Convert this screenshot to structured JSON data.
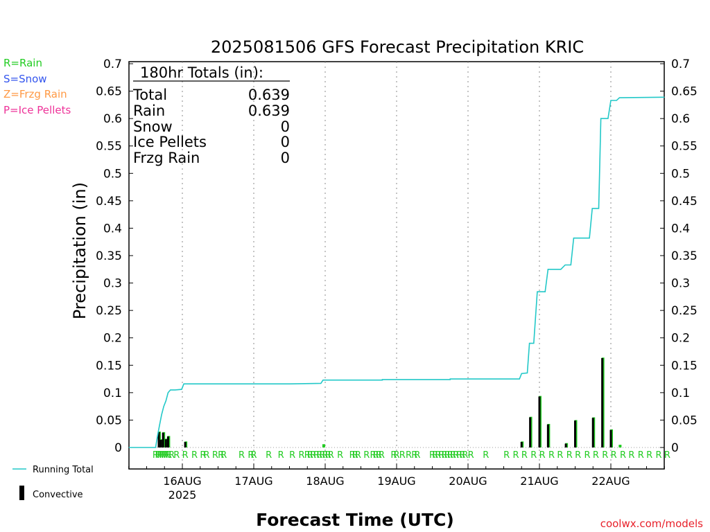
{
  "chart_data": {
    "type": "bar",
    "title": "2025081506 GFS Forecast Precipitation KRIC",
    "xlabel": "Forecast Time (UTC)",
    "ylabel": "Precipitation (in)",
    "ylim": [
      0,
      0.7
    ],
    "yticks": [
      "0",
      "0.05",
      "0.1",
      "0.15",
      "0.2",
      "0.25",
      "0.3",
      "0.35",
      "0.4",
      "0.45",
      "0.5",
      "0.55",
      "0.6",
      "0.65",
      "0.7"
    ],
    "xticks": [
      {
        "day": 16,
        "label": "16AUG",
        "sublabel": "2025"
      },
      {
        "day": 17,
        "label": "17AUG",
        "sublabel": ""
      },
      {
        "day": 18,
        "label": "18AUG",
        "sublabel": ""
      },
      {
        "day": 19,
        "label": "19AUG",
        "sublabel": ""
      },
      {
        "day": 20,
        "label": "20AUG",
        "sublabel": ""
      },
      {
        "day": 21,
        "label": "21AUG",
        "sublabel": ""
      },
      {
        "day": 22,
        "label": "22AUG",
        "sublabel": ""
      }
    ],
    "xrange_days": [
      15.25,
      22.75
    ],
    "legend": {
      "running_total": "Running Total",
      "convective": "Convective",
      "precip_types": [
        {
          "text": "R=Rain",
          "color": "#22cc22"
        },
        {
          "text": "S=Snow",
          "color": "#3355ee"
        },
        {
          "text": "Z=Frzg Rain",
          "color": "#ff9944"
        },
        {
          "text": "P=Ice Pellets",
          "color": "#ee3399"
        }
      ]
    },
    "totals": {
      "header": "180hr Totals (in):",
      "rows": [
        {
          "label": "Total",
          "value": "0.639"
        },
        {
          "label": "Rain",
          "value": "0.639"
        },
        {
          "label": "Snow",
          "value": "0"
        },
        {
          "label": "Ice Pellets",
          "value": "0"
        },
        {
          "label": "Frzg Rain",
          "value": "0"
        }
      ]
    },
    "series": [
      {
        "name": "Running Total",
        "color": "#22c8c8",
        "points": [
          [
            15.25,
            0
          ],
          [
            15.625,
            0
          ],
          [
            15.65,
            0.02
          ],
          [
            15.68,
            0.04
          ],
          [
            15.71,
            0.06
          ],
          [
            15.74,
            0.075
          ],
          [
            15.77,
            0.085
          ],
          [
            15.8,
            0.1
          ],
          [
            15.833,
            0.105
          ],
          [
            15.9,
            0.105
          ],
          [
            15.99,
            0.106
          ],
          [
            16.02,
            0.116
          ],
          [
            17.5,
            0.116
          ],
          [
            17.94,
            0.117
          ],
          [
            17.97,
            0.123
          ],
          [
            18.8,
            0.123
          ],
          [
            18.8,
            0.124
          ],
          [
            19.75,
            0.124
          ],
          [
            19.75,
            0.125
          ],
          [
            20.72,
            0.125
          ],
          [
            20.75,
            0.135
          ],
          [
            20.83,
            0.136
          ],
          [
            20.86,
            0.19
          ],
          [
            20.92,
            0.19
          ],
          [
            20.97,
            0.284
          ],
          [
            21.08,
            0.284
          ],
          [
            21.12,
            0.325
          ],
          [
            21.3,
            0.325
          ],
          [
            21.36,
            0.333
          ],
          [
            21.44,
            0.333
          ],
          [
            21.48,
            0.382
          ],
          [
            21.7,
            0.382
          ],
          [
            21.74,
            0.436
          ],
          [
            21.83,
            0.436
          ],
          [
            21.86,
            0.6
          ],
          [
            21.96,
            0.6
          ],
          [
            22.0,
            0.633
          ],
          [
            22.08,
            0.633
          ],
          [
            22.12,
            0.638
          ],
          [
            22.75,
            0.639
          ]
        ]
      },
      {
        "name": "Convective",
        "color": "#000000",
        "points": [
          [
            15.67,
            0.028
          ],
          [
            15.7,
            0.014
          ],
          [
            15.73,
            0.027
          ],
          [
            15.77,
            0.015
          ],
          [
            15.8,
            0.02
          ],
          [
            16.04,
            0.01
          ],
          [
            20.75,
            0.01
          ],
          [
            20.87,
            0.055
          ],
          [
            21.0,
            0.093
          ],
          [
            21.12,
            0.042
          ],
          [
            21.37,
            0.007
          ],
          [
            21.5,
            0.049
          ],
          [
            21.75,
            0.054
          ],
          [
            21.88,
            0.163
          ],
          [
            22.0,
            0.032
          ]
        ]
      },
      {
        "name": "Total",
        "color": "#22cc22",
        "points": [
          [
            15.67,
            0.029
          ],
          [
            15.7,
            0.015
          ],
          [
            15.73,
            0.028
          ],
          [
            15.77,
            0.016
          ],
          [
            15.8,
            0.021
          ],
          [
            16.04,
            0.011
          ],
          [
            17.97,
            0.006
          ],
          [
            20.75,
            0.011
          ],
          [
            20.87,
            0.056
          ],
          [
            21.0,
            0.094
          ],
          [
            21.12,
            0.043
          ],
          [
            21.37,
            0.008
          ],
          [
            21.5,
            0.05
          ],
          [
            21.75,
            0.055
          ],
          [
            21.88,
            0.164
          ],
          [
            22.0,
            0.033
          ],
          [
            22.12,
            0.005
          ]
        ]
      }
    ],
    "precip_type_markers": {
      "letter": "R",
      "color": "#22cc22",
      "days": [
        15.625,
        15.66,
        15.69,
        15.72,
        15.75,
        15.78,
        15.81,
        15.85,
        15.92,
        16.04,
        16.17,
        16.29,
        16.34,
        16.46,
        16.54,
        16.58,
        16.83,
        16.96,
        17.0,
        17.21,
        17.38,
        17.54,
        17.67,
        17.75,
        17.79,
        17.83,
        17.88,
        17.92,
        17.96,
        18.0,
        18.04,
        18.08,
        18.21,
        18.38,
        18.42,
        18.46,
        18.58,
        18.67,
        18.71,
        18.75,
        18.79,
        18.96,
        19.0,
        19.08,
        19.17,
        19.25,
        19.29,
        19.5,
        19.54,
        19.58,
        19.63,
        19.67,
        19.71,
        19.75,
        19.79,
        19.83,
        19.88,
        19.92,
        19.96,
        20.04,
        20.25,
        20.54,
        20.67,
        20.79,
        20.92,
        21.04,
        21.17,
        21.29,
        21.42,
        21.54,
        21.67,
        21.79,
        21.92,
        22.04,
        22.17,
        22.29,
        22.42,
        22.54,
        22.67,
        22.79
      ]
    }
  },
  "footer": {
    "credit": "coolwx.com/models"
  }
}
